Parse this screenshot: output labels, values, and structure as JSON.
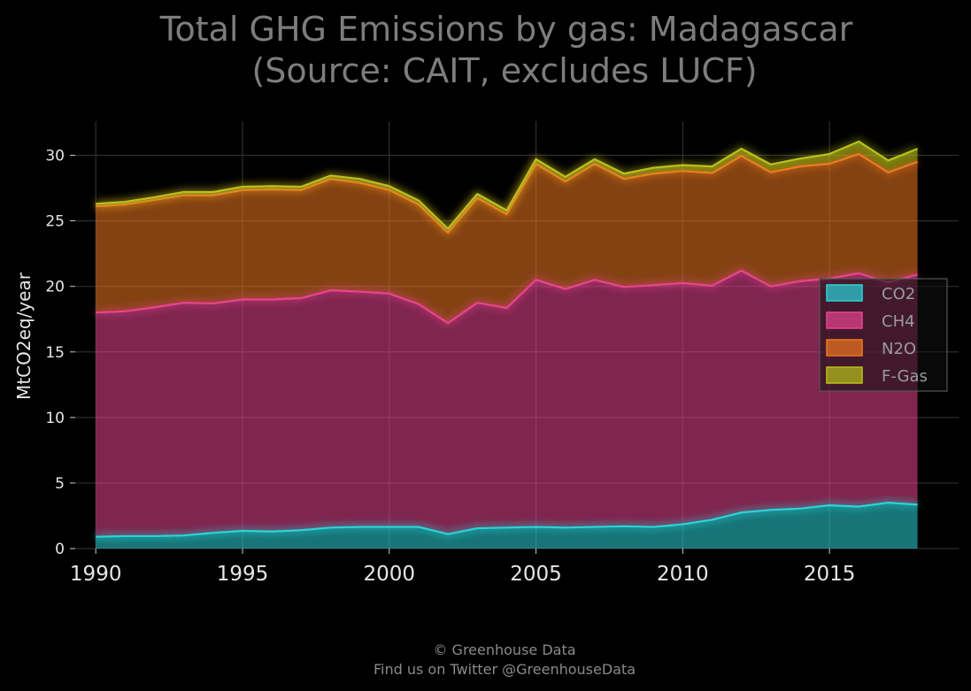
{
  "chart_data": {
    "type": "area",
    "stacked": true,
    "title_line1": "Total GHG Emissions by gas: Madagascar",
    "title_line2": "(Source: CAIT, excludes LUCF)",
    "ylabel": "MtCO2eq/year",
    "xlabel": "",
    "x": [
      1990,
      1991,
      1992,
      1993,
      1994,
      1995,
      1996,
      1997,
      1998,
      1999,
      2000,
      2001,
      2002,
      2003,
      2004,
      2005,
      2006,
      2007,
      2008,
      2009,
      2010,
      2011,
      2012,
      2013,
      2014,
      2015,
      2016,
      2017,
      2018
    ],
    "xticks": [
      "1990",
      "1995",
      "2000",
      "2005",
      "2010",
      "2015"
    ],
    "xtick_values": [
      1990,
      1995,
      2000,
      2005,
      2010,
      2015
    ],
    "yticks": [
      "0",
      "5",
      "10",
      "15",
      "20",
      "25",
      "30"
    ],
    "ytick_values": [
      0,
      5,
      10,
      15,
      20,
      25,
      30
    ],
    "xlim": [
      1989.3,
      2019.4
    ],
    "ylim": [
      0,
      32.6
    ],
    "grid": true,
    "legend_position": "center-right",
    "series": [
      {
        "name": "CO2",
        "color": "#2ad4d8",
        "values": [
          0.9,
          0.95,
          0.95,
          1.0,
          1.2,
          1.35,
          1.3,
          1.4,
          1.6,
          1.65,
          1.65,
          1.65,
          1.1,
          1.55,
          1.6,
          1.65,
          1.6,
          1.65,
          1.7,
          1.65,
          1.85,
          2.2,
          2.75,
          2.95,
          3.05,
          3.3,
          3.2,
          3.5,
          3.35
        ]
      },
      {
        "name": "CH4",
        "color": "#e8448e",
        "values": [
          17.1,
          17.15,
          17.45,
          17.75,
          17.5,
          17.65,
          17.7,
          17.7,
          18.1,
          17.95,
          17.8,
          17.0,
          16.1,
          17.2,
          16.75,
          18.85,
          18.2,
          18.85,
          18.25,
          18.45,
          18.4,
          17.85,
          18.45,
          17.05,
          17.35,
          17.3,
          17.8,
          16.8,
          17.55
        ]
      },
      {
        "name": "N2O",
        "color": "#f07820",
        "values": [
          8.1,
          8.15,
          8.2,
          8.2,
          8.25,
          8.35,
          8.4,
          8.25,
          8.5,
          8.3,
          7.9,
          7.6,
          6.9,
          8.0,
          7.15,
          8.85,
          8.2,
          8.85,
          8.25,
          8.5,
          8.55,
          8.6,
          8.75,
          8.7,
          8.75,
          8.75,
          9.1,
          8.4,
          8.6
        ]
      },
      {
        "name": "F-Gas",
        "color": "#b8c21a",
        "values": [
          0.2,
          0.2,
          0.2,
          0.25,
          0.25,
          0.25,
          0.25,
          0.25,
          0.25,
          0.3,
          0.3,
          0.3,
          0.3,
          0.3,
          0.3,
          0.35,
          0.35,
          0.35,
          0.4,
          0.45,
          0.45,
          0.5,
          0.55,
          0.6,
          0.6,
          0.75,
          0.95,
          0.9,
          1.0
        ]
      }
    ]
  },
  "footer": {
    "line1": "© Greenhouse Data",
    "line2": "Find us on Twitter @GreenhouseData"
  },
  "colors": {
    "background": "#000000",
    "grid": "#2e2e2e",
    "title": "#7d7d7d"
  }
}
